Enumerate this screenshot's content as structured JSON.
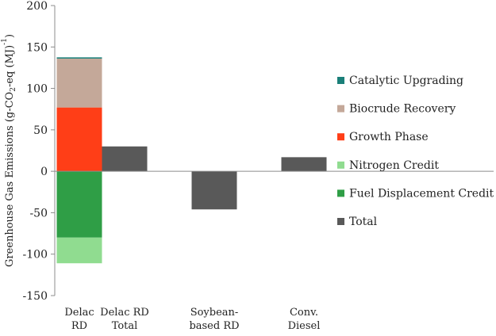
{
  "chart_data": {
    "type": "bar",
    "stacked": true,
    "ylabel_parts": [
      "Greenhouse Gas Emissions (g-CO",
      "2",
      "-eq (MJ)",
      "-1",
      ")"
    ],
    "ylim": [
      -150,
      200
    ],
    "yticks": [
      -150,
      -100,
      -50,
      0,
      50,
      100,
      150,
      200
    ],
    "grid": false,
    "legend_position": "right",
    "categories": [
      {
        "lines": [
          "Delac",
          "RD"
        ]
      },
      {
        "lines": [
          "Delac RD",
          "Total"
        ]
      },
      {
        "lines": [
          "Soybean-",
          "based RD"
        ]
      },
      {
        "lines": [
          "Conv.",
          "Diesel"
        ]
      }
    ],
    "series": [
      {
        "name": "Catalytic Upgrading",
        "color": "#1a7f79",
        "values": [
          1.5,
          0,
          0,
          0
        ]
      },
      {
        "name": "Biocrude Recovery",
        "color": "#c4a899",
        "values": [
          59,
          0,
          0,
          0
        ]
      },
      {
        "name": "Growth Phase",
        "color": "#ff3e17",
        "values": [
          77,
          0,
          0,
          0
        ]
      },
      {
        "name": "Nitrogen Credit",
        "color": "#90dc90",
        "values": [
          -31,
          0,
          0,
          0
        ]
      },
      {
        "name": "Fuel Displacement Credit",
        "color": "#2f9e46",
        "values": [
          -80,
          0,
          0,
          0
        ]
      },
      {
        "name": "Total",
        "color": "#595959",
        "values": [
          0,
          30,
          -46,
          17
        ]
      }
    ]
  }
}
